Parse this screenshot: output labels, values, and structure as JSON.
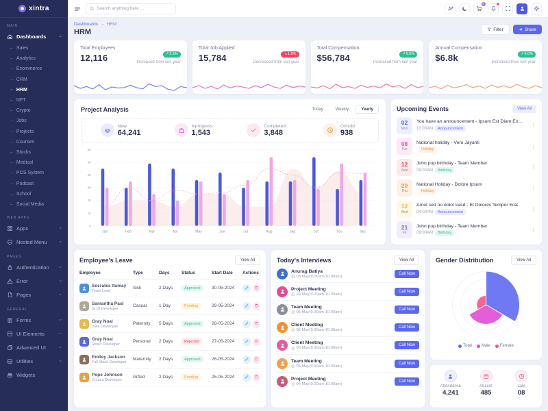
{
  "app": {
    "name": "xintra"
  },
  "topbar": {
    "search_placeholder": "Search anything here ...",
    "icons": [
      {
        "id": "translate"
      },
      {
        "id": "dark-mode",
        "icon": "moon"
      },
      {
        "id": "cart",
        "icon": "cart",
        "badge": "5"
      },
      {
        "id": "notifications",
        "icon": "bell",
        "dot": true
      },
      {
        "id": "fullscreen",
        "icon": "expand"
      },
      {
        "id": "profile-avatar",
        "icon": "user",
        "avatar": true
      },
      {
        "id": "settings",
        "icon": "gear"
      }
    ]
  },
  "sidebar": {
    "active_subitem": "HRM",
    "sections": [
      {
        "label": "MAIN",
        "items": [
          {
            "label": "Dashboards",
            "icon": "home",
            "chevron": "up",
            "active": true,
            "children": [
              "Sales",
              "Analytics",
              "Ecommerce",
              "CRM",
              "HRM",
              "NFT",
              "Crypto",
              "Jobs",
              "Projects",
              "Courses",
              "Stocks",
              "Medical",
              "POS System",
              "Podcast",
              "School",
              "Social Media"
            ]
          }
        ]
      },
      {
        "label": "WEB APPS",
        "items": [
          {
            "label": "Apps",
            "icon": "grid",
            "chevron": "down"
          },
          {
            "label": "Nested Menu",
            "icon": "nested",
            "chevron": "down"
          }
        ]
      },
      {
        "label": "PAGES",
        "items": [
          {
            "label": "Authentication",
            "icon": "lock",
            "chevron": "down"
          },
          {
            "label": "Error",
            "icon": "warning",
            "chevron": "down"
          },
          {
            "label": "Pages",
            "icon": "file",
            "chevron": "down"
          }
        ]
      },
      {
        "label": "GENERAL",
        "items": [
          {
            "label": "Forms",
            "icon": "form",
            "chevron": "down"
          },
          {
            "label": "UI Elements",
            "icon": "box",
            "chevron": "down"
          },
          {
            "label": "Advanced UI",
            "icon": "layers",
            "chevron": "down"
          },
          {
            "label": "Utilities",
            "icon": "inbox",
            "chevron": "down"
          },
          {
            "label": "Widgets",
            "icon": "gift"
          }
        ]
      }
    ]
  },
  "page": {
    "breadcrumb_root": "Dashboards",
    "breadcrumb_arrow": "→",
    "breadcrumb_current": "HRM",
    "title": "HRM",
    "filter_label": "Filter",
    "share_label": "Share"
  },
  "stat_cards": [
    {
      "title": "Total Employees",
      "value": "12,116",
      "change": "2.5%",
      "direction": "up",
      "trend_icon": "↗",
      "subtitle": "Increased from last year",
      "color": "#7d88f4",
      "spark": [
        45,
        25,
        38,
        20,
        52,
        15,
        35,
        28,
        30,
        48,
        30,
        22,
        58,
        38,
        45,
        18,
        10,
        38,
        30
      ]
    },
    {
      "title": "Total Job Applied",
      "value": "15,784",
      "change": "1.8%",
      "direction": "down",
      "trend_icon": "↘",
      "subtitle": "Decreased from last year",
      "color": "#ef79cf",
      "spark": [
        30,
        45,
        25,
        40,
        20,
        50,
        28,
        42,
        35,
        25,
        45,
        30,
        55,
        35,
        25,
        48,
        30,
        42,
        35
      ]
    },
    {
      "title": "Total Compensation",
      "value": "$56,784",
      "change": "6.0%",
      "direction": "up",
      "trend_icon": "↗",
      "subtitle": "Increased from last year",
      "color": "#f97da0",
      "spark": [
        35,
        28,
        45,
        22,
        55,
        30,
        38,
        25,
        48,
        32,
        42,
        28,
        58,
        35,
        45,
        25,
        52,
        30,
        40
      ]
    },
    {
      "title": "Annual Compensation",
      "value": "$6.8k",
      "change": "6.0%",
      "direction": "up",
      "trend_icon": "↗",
      "subtitle": "Increased from last year",
      "color": "#fca678",
      "spark": [
        30,
        40,
        22,
        48,
        28,
        38,
        52,
        30,
        42,
        25,
        50,
        32,
        45,
        28,
        55,
        35,
        25,
        45,
        30
      ]
    }
  ],
  "project_analysis": {
    "title": "Project Analysis",
    "tabs": [
      {
        "label": "Today"
      },
      {
        "label": "Weekly"
      },
      {
        "label": "Yearly",
        "active_class": "active"
      }
    ],
    "stats": [
      {
        "label": "New",
        "value": "64,241",
        "icon": "stack",
        "theme": "indigo"
      },
      {
        "label": "Inprogress",
        "value": "1,543",
        "icon": "bag",
        "theme": "magenta"
      },
      {
        "label": "Completed",
        "value": "3,848",
        "icon": "check",
        "theme": "pink"
      },
      {
        "label": "Onhold",
        "value": "938",
        "icon": "clock",
        "theme": "orange"
      }
    ]
  },
  "chart_data": [
    {
      "id": "project-analysis",
      "type": "bar",
      "categories": [
        "Jan",
        "Feb",
        "Mar",
        "Apr",
        "May",
        "Jun",
        "Jul",
        "Aug",
        "sep",
        "oct",
        "nov",
        "dec"
      ],
      "series": [
        {
          "name": "bars-primary",
          "type": "bar",
          "color": "#4a57e8",
          "values": [
            45,
            30,
            49,
            45,
            36,
            42,
            30,
            35,
            35,
            54,
            29,
            36
          ]
        },
        {
          "name": "bars-secondary",
          "type": "bar",
          "color": "#f2a6e3",
          "values": [
            30,
            35,
            25,
            20,
            35,
            25,
            36,
            54,
            36,
            29,
            49,
            42
          ]
        },
        {
          "name": "dotted-line",
          "type": "line",
          "style": "dotted",
          "color": "#f2a9c4",
          "values": [
            15,
            30,
            20,
            28,
            25,
            26,
            32,
            45,
            40,
            30,
            42,
            41
          ]
        },
        {
          "name": "area",
          "type": "area",
          "color": "#f8dcd8",
          "values": [
            15,
            20,
            20,
            15,
            25,
            25,
            15,
            15,
            45,
            30,
            43,
            25
          ]
        }
      ],
      "ylim": [
        0,
        60
      ],
      "yticks": [
        0,
        10,
        20,
        30,
        40,
        50,
        60
      ],
      "grid": true,
      "legend": "none"
    },
    {
      "id": "gender-distribution",
      "type": "polar-area",
      "series": [
        {
          "name": "Total",
          "value": 100,
          "color": "#5b67f2"
        },
        {
          "name": "Male",
          "value": 58,
          "color": "#df4ad4"
        },
        {
          "name": "Female",
          "value": 28,
          "color": "#fb4f84"
        }
      ]
    }
  ],
  "upcoming_events": {
    "title": "Upcoming Events",
    "view_all": "View All",
    "events": [
      {
        "day": "02",
        "weekday": "Mon",
        "title": "You have an announcement - Ipsum Est Diam Eirmod",
        "time": "10:00AM",
        "tag": "Announcement",
        "tag_theme": "indigo",
        "tile_theme": "indigo"
      },
      {
        "day": "08",
        "weekday": "Tue",
        "title": "National holiday - Vero Jayanti",
        "time": "",
        "tag": "Holiday",
        "tag_theme": "orange",
        "tile_theme": "pink"
      },
      {
        "day": "12",
        "weekday": "Wed",
        "title": "John pup birthday - Team Member",
        "time": "09:00AM",
        "tag": "Birthday",
        "tag_theme": "teal",
        "tile_theme": "red"
      },
      {
        "day": "20",
        "weekday": "Thu",
        "title": "National Holiday - Dolore Ipsum",
        "time": "",
        "tag": "Holiday",
        "tag_theme": "orange",
        "tile_theme": "orange"
      },
      {
        "day": "12",
        "weekday": "Wed",
        "title": "Amet sed no dolor kasd - Et Dolores Tempor Erat",
        "time": "04:00PM",
        "tag": "Announcement",
        "tag_theme": "indigo",
        "tile_theme": "yellow"
      },
      {
        "day": "21",
        "weekday": "Fri",
        "title": "John pup birthday - Team Member",
        "time": "09:00AM",
        "tag": "Birthday",
        "tag_theme": "teal",
        "tile_theme": "purple"
      }
    ]
  },
  "employees_leave": {
    "title": "Employee's Leave",
    "view_all": "View All",
    "columns": [
      "Employee",
      "Type",
      "Days",
      "Status",
      "Start Date",
      "Actions"
    ],
    "rows": [
      {
        "name": "Socrates Itumay",
        "role": "Team Lead",
        "type": "Sick",
        "days": "2 Days",
        "status": "Approved",
        "status_theme": "approved",
        "date": "30-05-2024",
        "avatar": "#4a90d9"
      },
      {
        "name": "Samantha Paul",
        "role": "Sr.UI Developer",
        "type": "Casual",
        "days": "1 Day",
        "status": "Pending",
        "status_theme": "pending",
        "date": "29-05-2024",
        "avatar": "#b0a79b"
      },
      {
        "name": "Gray Noal",
        "role": "Java Developer",
        "type": "Paternity",
        "days": "5 Days",
        "status": "Approved",
        "status_theme": "approved",
        "date": "28-05-2024",
        "avatar": "#e8b84a"
      },
      {
        "name": "Gray Noal",
        "role": "React Developer",
        "type": "Personal",
        "days": "2 Days",
        "status": "Rejected",
        "status_theme": "rejected",
        "date": "27-05-2024",
        "avatar": "#5a6ad9"
      },
      {
        "name": "Emiley Jackson",
        "role": "Full Stack Developer",
        "type": "Maternity",
        "days": "2 Days",
        "status": "Approved",
        "status_theme": "approved",
        "date": "26-05-2024",
        "avatar": "#8a6d5c"
      },
      {
        "name": "Pope Johnson",
        "role": "Jr.Java Developer",
        "type": "Gifted",
        "days": "2 Days",
        "status": "Pending",
        "status_theme": "pending",
        "date": "25-05-2024",
        "avatar": "#e8a04a"
      }
    ]
  },
  "interviews": {
    "title": "Today's Interviews",
    "view_all": "View All",
    "call_label": "Call Now",
    "items": [
      {
        "name": "Anurag Batiya",
        "time": "03 May(9.00am-10.00am)",
        "avatar": "#3b6fd9"
      },
      {
        "name": "Project Meeting",
        "time": "04 May(9.00am-10.00am)",
        "avatar": "#e84a8f"
      },
      {
        "name": "Team Meeting",
        "time": "05 May(9.00am-10.00am)",
        "avatar": "#8a8f9b"
      },
      {
        "name": "Client Meeting",
        "time": "06 May(9.00am-10.00am)",
        "avatar": "#f0922f"
      },
      {
        "name": "Client Meeting",
        "time": "06 May(9.00am-10.00am)",
        "avatar": "#e85a9b"
      },
      {
        "name": "Team Meeting",
        "time": "05 May(9.00am-10.00am)",
        "avatar": "#f0a04a"
      },
      {
        "name": "Project Meeting",
        "time": "04 May(9.00am-10.00am)",
        "avatar": "#c75a7a"
      }
    ]
  },
  "gender": {
    "title": "Gender Distribution",
    "view_all": "View All",
    "legend": [
      {
        "label": "Total",
        "color": "#5b67f2"
      },
      {
        "label": "Male",
        "color": "#df4ad4"
      },
      {
        "label": "Female",
        "color": "#fb4f84"
      }
    ]
  },
  "attendance": {
    "items": [
      {
        "label": "Attendance",
        "value": "4,241",
        "icon": "person",
        "theme": "indigo"
      },
      {
        "label": "Absent",
        "value": "485",
        "icon": "calendar",
        "theme": "pink"
      },
      {
        "label": "Late",
        "value": "08",
        "icon": "clock",
        "theme": "rose"
      }
    ]
  }
}
